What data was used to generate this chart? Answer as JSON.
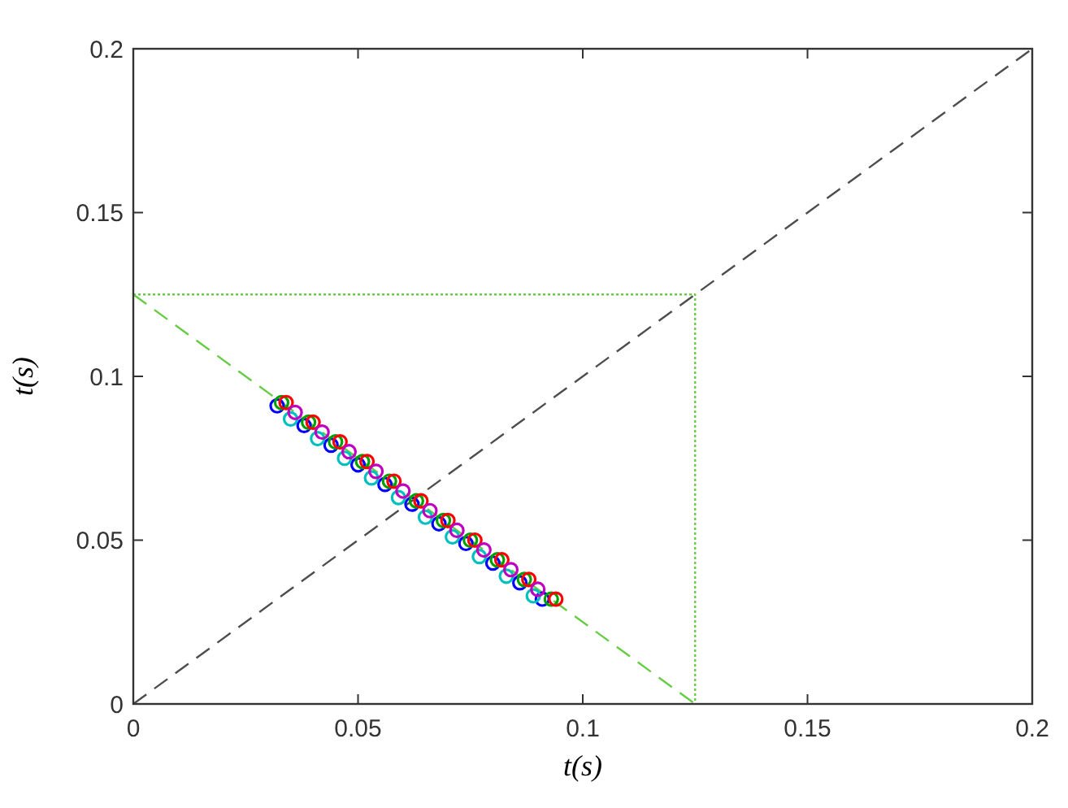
{
  "chart_data": {
    "type": "scatter",
    "xlabel": "t(s)",
    "ylabel": "t(s)",
    "xlim": [
      0,
      0.2
    ],
    "ylim": [
      0,
      0.2
    ],
    "xticks": [
      0,
      0.05,
      0.1,
      0.15,
      0.2
    ],
    "yticks": [
      0,
      0.05,
      0.1,
      0.15,
      0.2
    ],
    "grid": false,
    "marker": "circle",
    "series": [
      {
        "type": "line",
        "marker": "none",
        "line_style": "dashed",
        "color": "#4d4d4d",
        "x": [
          0,
          0.2
        ],
        "values": [
          0,
          0.2
        ]
      },
      {
        "type": "line",
        "marker": "none",
        "line_style": "dashed",
        "color": "#66cc44",
        "x": [
          0,
          0.125
        ],
        "values": [
          0.125,
          0
        ]
      },
      {
        "type": "line",
        "marker": "none",
        "line_style": "dotted",
        "color": "#66cc44",
        "x": [
          0,
          0.125,
          0.125
        ],
        "values": [
          0.125,
          0.125,
          0
        ]
      },
      {
        "color": "#0000ff",
        "x": [
          0.032,
          0.038,
          0.044,
          0.05,
          0.056,
          0.062,
          0.068,
          0.074,
          0.08,
          0.086,
          0.091
        ],
        "values": [
          0.091,
          0.085,
          0.079,
          0.073,
          0.067,
          0.061,
          0.055,
          0.049,
          0.043,
          0.037,
          0.032
        ]
      },
      {
        "color": "#00a000",
        "x": [
          0.033,
          0.039,
          0.045,
          0.051,
          0.057,
          0.063,
          0.069,
          0.075,
          0.081,
          0.087,
          0.093
        ],
        "values": [
          0.092,
          0.086,
          0.08,
          0.074,
          0.068,
          0.062,
          0.056,
          0.05,
          0.044,
          0.038,
          0.032
        ]
      },
      {
        "color": "#ff0000",
        "x": [
          0.034,
          0.04,
          0.046,
          0.052,
          0.058,
          0.064,
          0.07,
          0.076,
          0.082,
          0.088,
          0.094
        ],
        "values": [
          0.092,
          0.086,
          0.08,
          0.074,
          0.068,
          0.062,
          0.056,
          0.05,
          0.044,
          0.038,
          0.032
        ]
      },
      {
        "color": "#00bfbf",
        "x": [
          0.035,
          0.041,
          0.047,
          0.053,
          0.059,
          0.065,
          0.071,
          0.077,
          0.083,
          0.089
        ],
        "values": [
          0.087,
          0.081,
          0.075,
          0.069,
          0.063,
          0.057,
          0.051,
          0.045,
          0.039,
          0.033
        ]
      },
      {
        "color": "#bf00bf",
        "x": [
          0.036,
          0.042,
          0.048,
          0.054,
          0.06,
          0.066,
          0.072,
          0.078,
          0.084,
          0.09
        ],
        "values": [
          0.089,
          0.083,
          0.077,
          0.071,
          0.065,
          0.059,
          0.053,
          0.047,
          0.041,
          0.035
        ]
      }
    ]
  }
}
